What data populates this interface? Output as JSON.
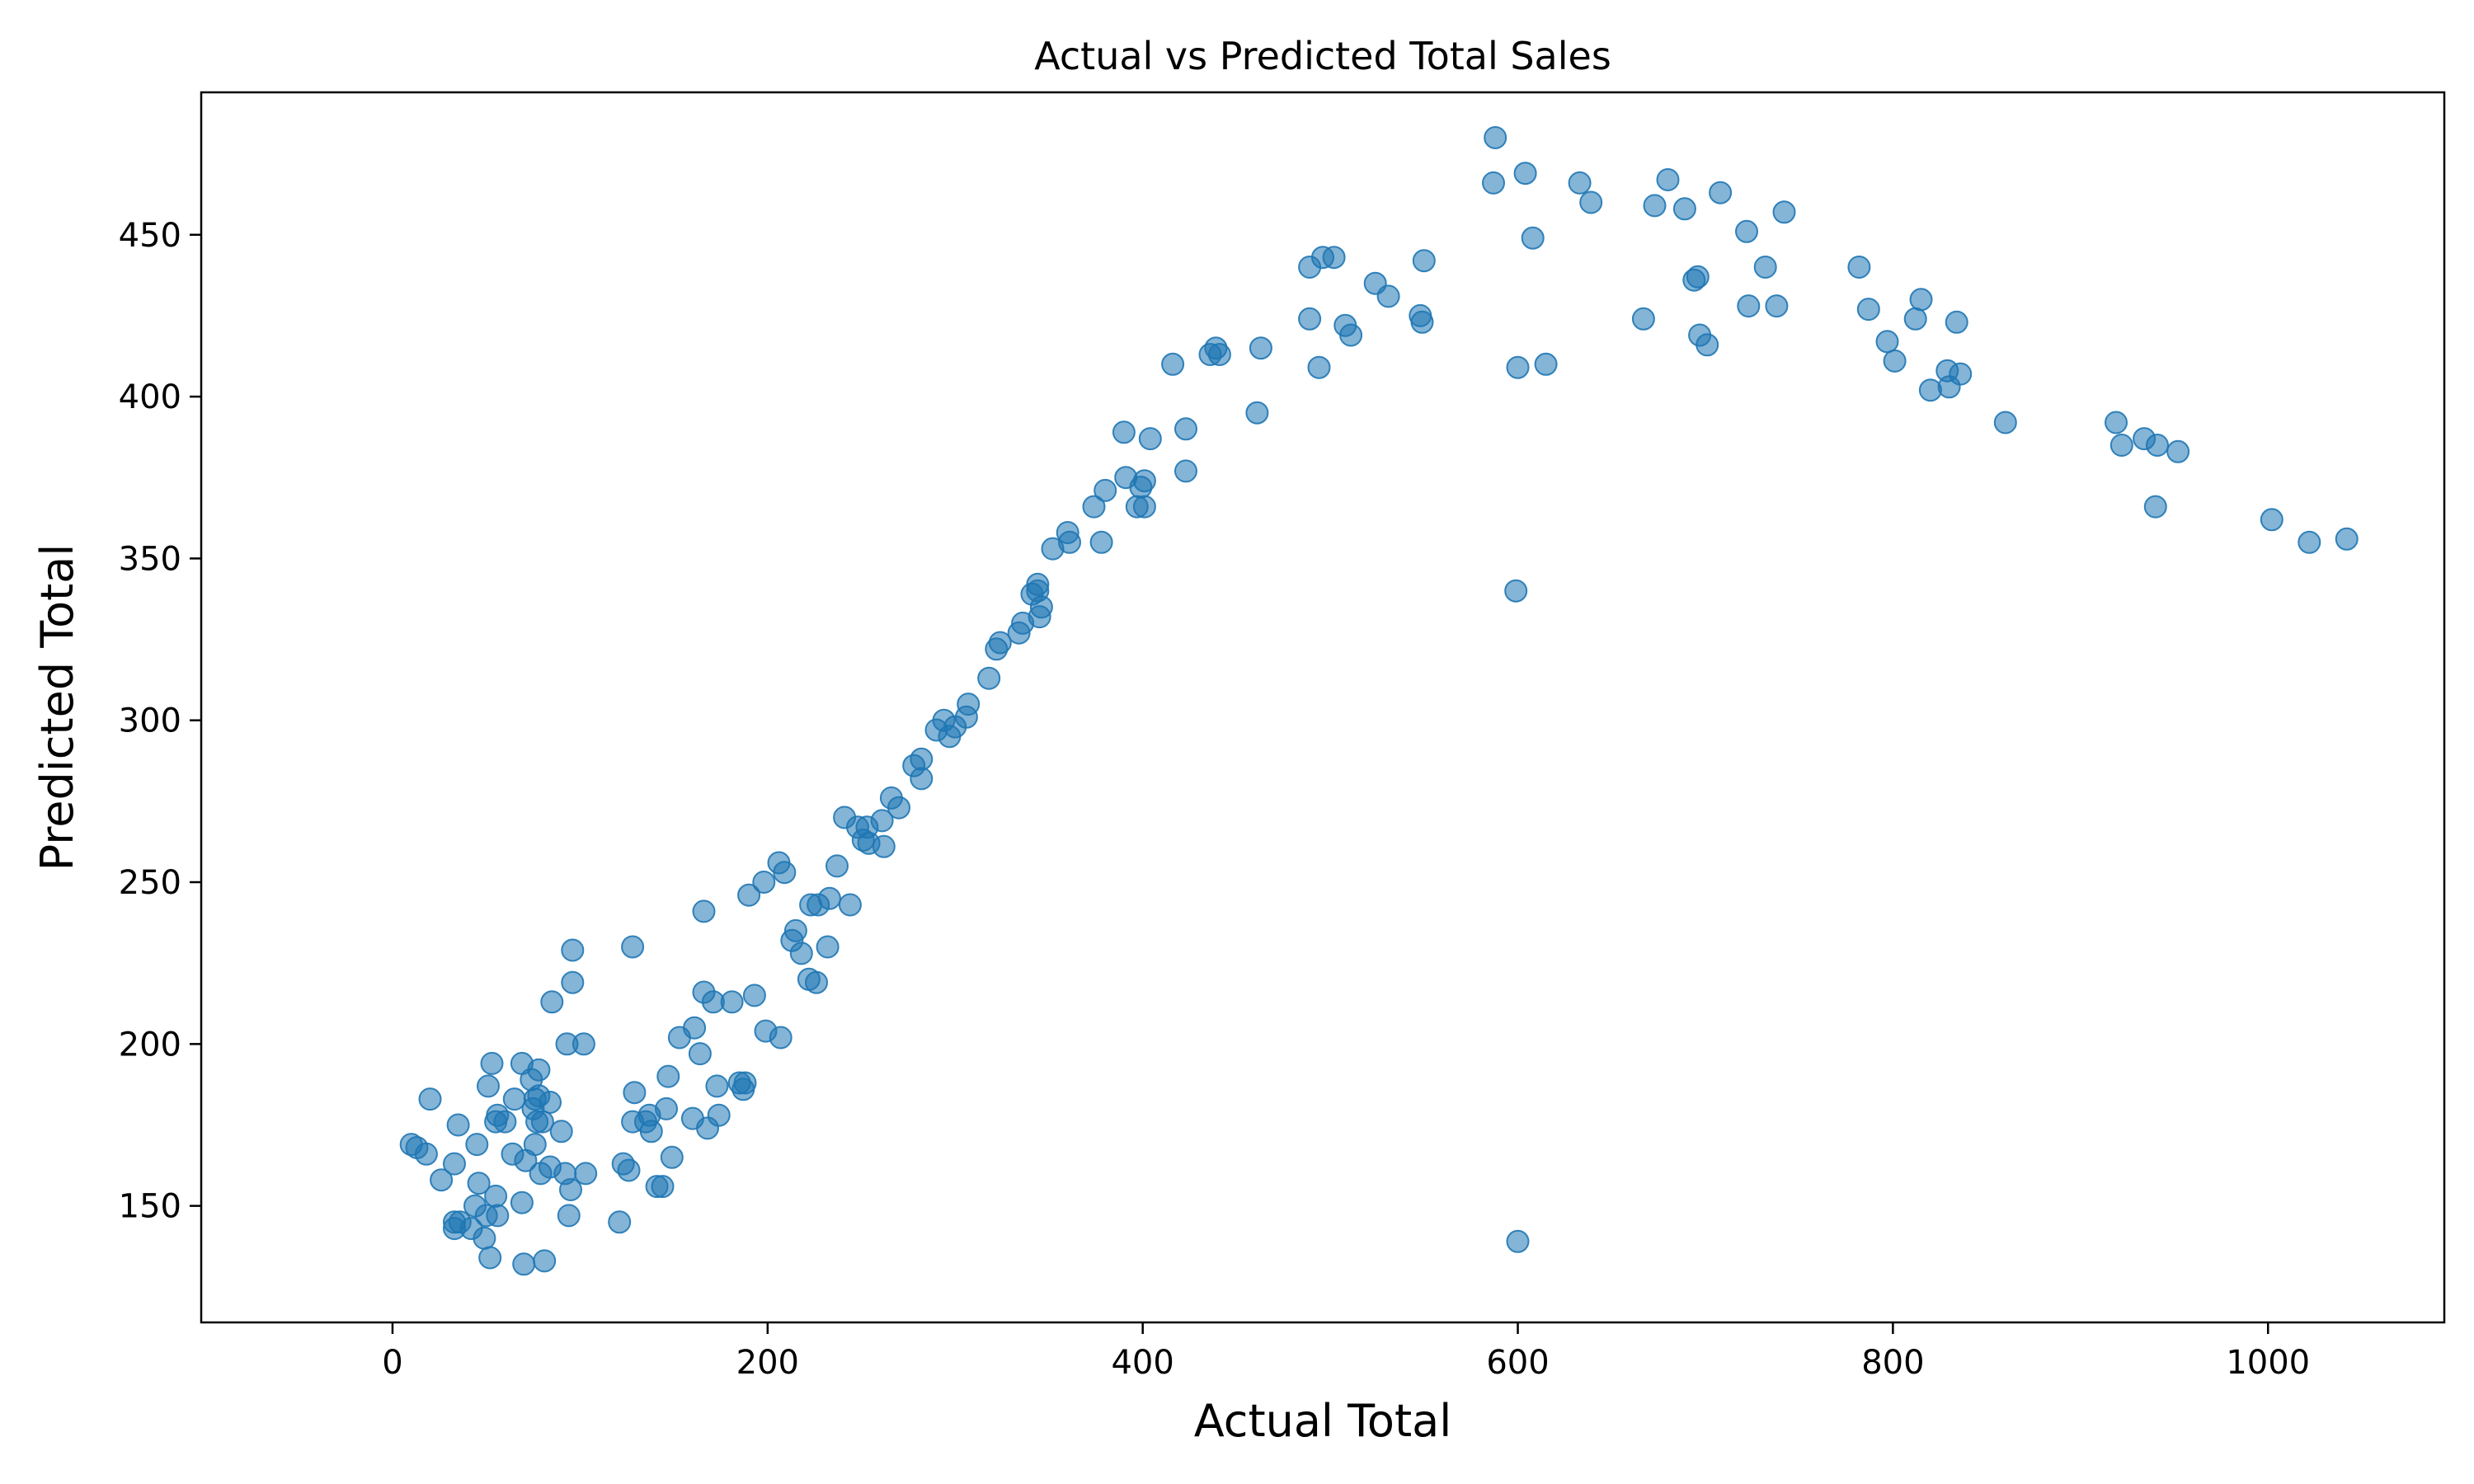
{
  "chart_data": {
    "type": "scatter",
    "title": "Actual vs Predicted Total Sales",
    "xlabel": "Actual Total",
    "ylabel": "Predicted Total",
    "xlim": [
      -102,
      1094
    ],
    "ylim": [
      114,
      494
    ],
    "x_ticks": [
      0,
      200,
      400,
      600,
      800,
      1000
    ],
    "y_ticks": [
      150,
      200,
      250,
      300,
      350,
      400,
      450
    ],
    "grid": false,
    "legend": "none",
    "point_color": "#1f77b4",
    "point_alpha": 0.55,
    "series": [
      {
        "points": [
          [
            10,
            169
          ],
          [
            13,
            168
          ],
          [
            18,
            166
          ],
          [
            20,
            183
          ],
          [
            26,
            158
          ],
          [
            33,
            163
          ],
          [
            35,
            175
          ],
          [
            33,
            145
          ],
          [
            33,
            143
          ],
          [
            36,
            145
          ],
          [
            42,
            143
          ],
          [
            44,
            150
          ],
          [
            45,
            169
          ],
          [
            46,
            157
          ],
          [
            49,
            140
          ],
          [
            50,
            147
          ],
          [
            51,
            187
          ],
          [
            53,
            194
          ],
          [
            52,
            134
          ],
          [
            55,
            153
          ],
          [
            56,
            147
          ],
          [
            55,
            176
          ],
          [
            56,
            178
          ],
          [
            60,
            176
          ],
          [
            64,
            166
          ],
          [
            65,
            183
          ],
          [
            69,
            194
          ],
          [
            69,
            151
          ],
          [
            70,
            132
          ],
          [
            71,
            164
          ],
          [
            74,
            189
          ],
          [
            75,
            180
          ],
          [
            76,
            169
          ],
          [
            76,
            183
          ],
          [
            77,
            176
          ],
          [
            78,
            192
          ],
          [
            78,
            184
          ],
          [
            79,
            160
          ],
          [
            80,
            176
          ],
          [
            81,
            133
          ],
          [
            84,
            182
          ],
          [
            84,
            162
          ],
          [
            85,
            213
          ],
          [
            90,
            173
          ],
          [
            92,
            160
          ],
          [
            93,
            200
          ],
          [
            94,
            147
          ],
          [
            95,
            155
          ],
          [
            96,
            219
          ],
          [
            96,
            229
          ],
          [
            102,
            200
          ],
          [
            103,
            160
          ],
          [
            121,
            145
          ],
          [
            123,
            163
          ],
          [
            126,
            161
          ],
          [
            128,
            230
          ],
          [
            128,
            176
          ],
          [
            129,
            185
          ],
          [
            135,
            176
          ],
          [
            137,
            178
          ],
          [
            138,
            173
          ],
          [
            141,
            156
          ],
          [
            144,
            156
          ],
          [
            146,
            180
          ],
          [
            147,
            190
          ],
          [
            149,
            165
          ],
          [
            153,
            202
          ],
          [
            160,
            177
          ],
          [
            161,
            205
          ],
          [
            164,
            197
          ],
          [
            166,
            241
          ],
          [
            166,
            216
          ],
          [
            168,
            174
          ],
          [
            171,
            213
          ],
          [
            173,
            187
          ],
          [
            174,
            178
          ],
          [
            181,
            213
          ],
          [
            185,
            188
          ],
          [
            187,
            186
          ],
          [
            188,
            188
          ],
          [
            190,
            246
          ],
          [
            193,
            215
          ],
          [
            198,
            250
          ],
          [
            199,
            204
          ],
          [
            206,
            256
          ],
          [
            207,
            202
          ],
          [
            209,
            253
          ],
          [
            213,
            232
          ],
          [
            215,
            235
          ],
          [
            218,
            228
          ],
          [
            222,
            220
          ],
          [
            223,
            243
          ],
          [
            226,
            219
          ],
          [
            227,
            243
          ],
          [
            232,
            230
          ],
          [
            233,
            245
          ],
          [
            237,
            255
          ],
          [
            241,
            270
          ],
          [
            244,
            243
          ],
          [
            248,
            267
          ],
          [
            251,
            263
          ],
          [
            253,
            267
          ],
          [
            254,
            262
          ],
          [
            261,
            269
          ],
          [
            262,
            261
          ],
          [
            266,
            276
          ],
          [
            270,
            273
          ],
          [
            278,
            286
          ],
          [
            282,
            288
          ],
          [
            282,
            282
          ],
          [
            290,
            297
          ],
          [
            294,
            300
          ],
          [
            297,
            295
          ],
          [
            300,
            298
          ],
          [
            306,
            301
          ],
          [
            307,
            305
          ],
          [
            318,
            313
          ],
          [
            322,
            322
          ],
          [
            324,
            324
          ],
          [
            334,
            327
          ],
          [
            336,
            330
          ],
          [
            341,
            339
          ],
          [
            344,
            342
          ],
          [
            344,
            340
          ],
          [
            345,
            332
          ],
          [
            346,
            335
          ],
          [
            352,
            353
          ],
          [
            360,
            358
          ],
          [
            361,
            355
          ],
          [
            374,
            366
          ],
          [
            378,
            355
          ],
          [
            380,
            371
          ],
          [
            390,
            389
          ],
          [
            391,
            375
          ],
          [
            397,
            366
          ],
          [
            399,
            372
          ],
          [
            401,
            374
          ],
          [
            401,
            366
          ],
          [
            404,
            387
          ],
          [
            416,
            410
          ],
          [
            423,
            390
          ],
          [
            423,
            377
          ],
          [
            436,
            413
          ],
          [
            439,
            415
          ],
          [
            441,
            413
          ],
          [
            461,
            395
          ],
          [
            463,
            415
          ],
          [
            489,
            424
          ],
          [
            489,
            440
          ],
          [
            494,
            409
          ],
          [
            496,
            443
          ],
          [
            502,
            443
          ],
          [
            508,
            422
          ],
          [
            511,
            419
          ],
          [
            524,
            435
          ],
          [
            531,
            431
          ],
          [
            548,
            425
          ],
          [
            549,
            423
          ],
          [
            550,
            442
          ],
          [
            587,
            466
          ],
          [
            588,
            480
          ],
          [
            599,
            340
          ],
          [
            600,
            139
          ],
          [
            600,
            409
          ],
          [
            604,
            469
          ],
          [
            608,
            449
          ],
          [
            615,
            410
          ],
          [
            633,
            466
          ],
          [
            639,
            460
          ],
          [
            667,
            424
          ],
          [
            673,
            459
          ],
          [
            680,
            467
          ],
          [
            689,
            458
          ],
          [
            694,
            436
          ],
          [
            696,
            437
          ],
          [
            697,
            419
          ],
          [
            701,
            416
          ],
          [
            708,
            463
          ],
          [
            722,
            451
          ],
          [
            723,
            428
          ],
          [
            732,
            440
          ],
          [
            738,
            428
          ],
          [
            742,
            457
          ],
          [
            782,
            440
          ],
          [
            787,
            427
          ],
          [
            797,
            417
          ],
          [
            801,
            411
          ],
          [
            812,
            424
          ],
          [
            815,
            430
          ],
          [
            820,
            402
          ],
          [
            829,
            408
          ],
          [
            830,
            403
          ],
          [
            834,
            423
          ],
          [
            836,
            407
          ],
          [
            860,
            392
          ],
          [
            919,
            392
          ],
          [
            922,
            385
          ],
          [
            934,
            387
          ],
          [
            941,
            385
          ],
          [
            952,
            383
          ],
          [
            940,
            366
          ],
          [
            1002,
            362
          ],
          [
            1022,
            355
          ],
          [
            1042,
            356
          ]
        ]
      }
    ]
  }
}
